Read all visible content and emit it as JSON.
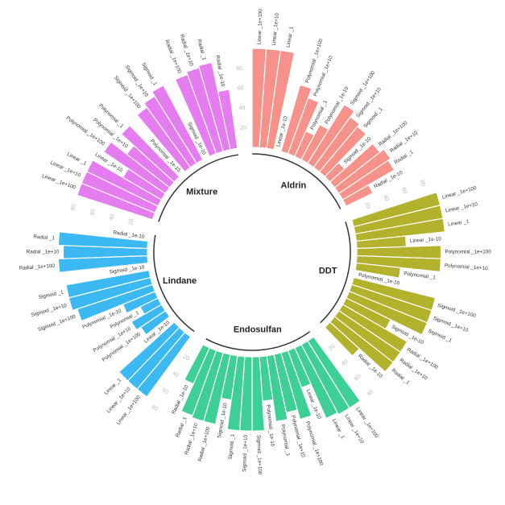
{
  "chart_data": {
    "type": "bar",
    "layout": "circular",
    "categories": [
      "Linear _1e+100",
      "Linear _1e+10",
      "Linear _1",
      "Linear _1e-10",
      "Polynomial _1e+100",
      "Polynomial _1e+10",
      "Polynomial _1",
      "Polynomial _1e-10",
      "Sigmoid _1e+100",
      "Sigmoid _1e+10",
      "Sigmoid _1",
      "Sigmoid _1e-10",
      "Radial _1e+100",
      "Radial _1e+10",
      "Radial _1",
      "Radial _1e-10"
    ],
    "ylim": [
      0,
      100
    ],
    "ticks": [
      20,
      40,
      60,
      80
    ],
    "grid": false,
    "legend": "none",
    "series": [
      {
        "name": "Aldrin",
        "color": "#F6928A",
        "values": [
          100,
          100,
          100,
          0,
          70,
          60,
          28,
          40,
          70,
          63,
          60,
          20,
          58,
          63,
          60,
          30
        ]
      },
      {
        "name": "DDT",
        "color": "#B3B22D",
        "values": [
          90,
          90,
          90,
          50,
          85,
          85,
          45,
          0,
          85,
          85,
          85,
          50,
          75,
          75,
          75,
          40
        ]
      },
      {
        "name": "Endosulfan",
        "color": "#3ECF96",
        "values": [
          80,
          80,
          78,
          40,
          70,
          60,
          67,
          45,
          75,
          75,
          75,
          45,
          72,
          72,
          70,
          40
        ]
      },
      {
        "name": "Lindane",
        "color": "#3CB9F2",
        "values": [
          75,
          75,
          75,
          0,
          30,
          35,
          20,
          35,
          80,
          85,
          85,
          0,
          90,
          85,
          90,
          0
        ]
      },
      {
        "name": "Mixture",
        "color": "#E57CF0",
        "values": [
          80,
          80,
          80,
          45,
          75,
          55,
          72,
          0,
          75,
          80,
          85,
          0,
          85,
          88,
          90,
          60
        ]
      }
    ]
  }
}
